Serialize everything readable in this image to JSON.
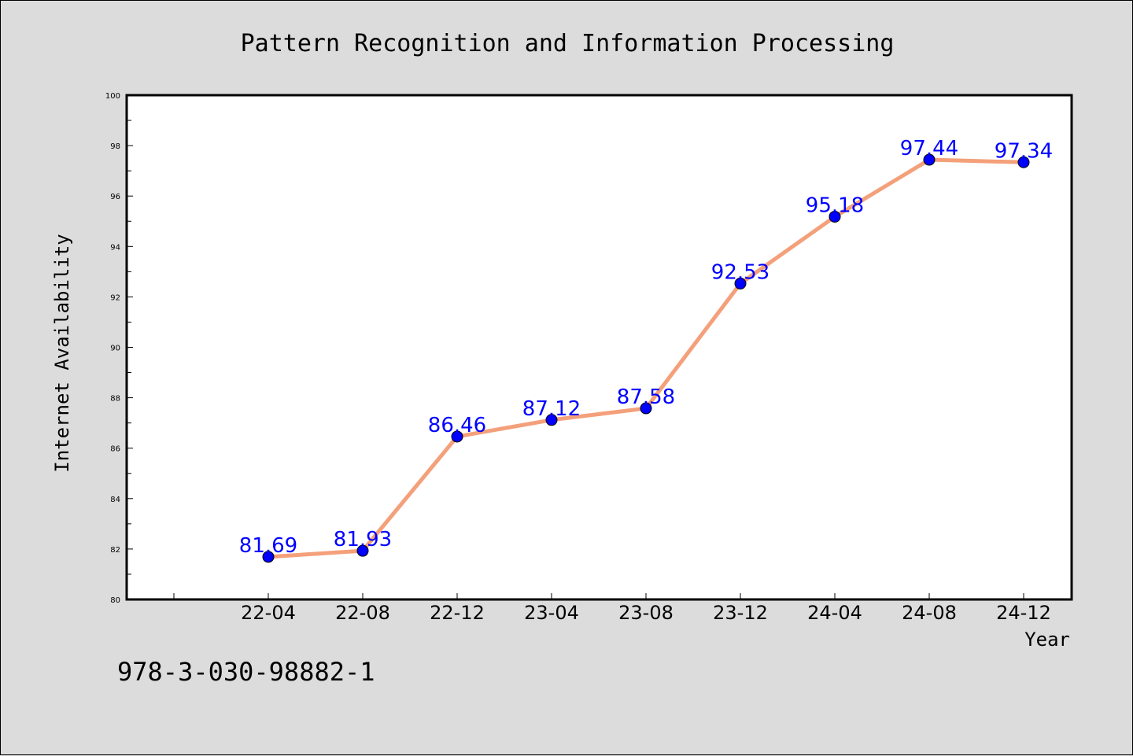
{
  "colors": {
    "line": "#f4a07a",
    "marker": "#0000ff",
    "label": "#0000ff",
    "background": "#dcdcdc",
    "plot_background": "#ffffff"
  },
  "footer": {
    "identifier": "978-3-030-98882-1"
  },
  "chart_data": {
    "type": "line",
    "title": "Pattern Recognition and Information Processing",
    "xlabel": "Year",
    "ylabel": "Internet Availability",
    "categories": [
      "22-04",
      "22-08",
      "22-12",
      "23-04",
      "23-08",
      "23-12",
      "24-04",
      "24-08",
      "24-12"
    ],
    "series": [
      {
        "values": [
          81.69,
          81.93,
          86.46,
          87.12,
          87.58,
          92.53,
          95.18,
          97.44,
          97.34
        ],
        "labels": [
          "81.69",
          "81.93",
          "86.46",
          "87.12",
          "87.58",
          "92.53",
          "95.18",
          "97.44",
          "97.34"
        ]
      }
    ],
    "ylim": [
      80,
      100
    ],
    "yticks": [
      "80",
      "82",
      "84",
      "86",
      "88",
      "90",
      "92",
      "94",
      "96",
      "98",
      "100"
    ],
    "grid": false,
    "legend": "none"
  }
}
